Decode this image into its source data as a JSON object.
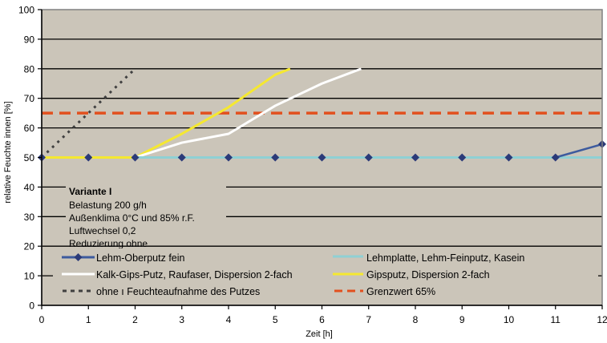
{
  "chart_data": {
    "type": "line",
    "title": "",
    "xlabel": "Zeit [h]",
    "ylabel": "relative Feuchte innen [%]",
    "xlim": [
      0,
      12
    ],
    "ylim": [
      0,
      100
    ],
    "x_ticks": [
      0,
      1,
      2,
      3,
      4,
      5,
      6,
      7,
      8,
      9,
      10,
      11,
      12
    ],
    "y_ticks": [
      0,
      10,
      20,
      30,
      40,
      50,
      60,
      70,
      80,
      90,
      100
    ],
    "grid": true,
    "legend_position": "inside-bottom",
    "series": [
      {
        "name": "Lehm-Oberputz fein",
        "color": "#3d5b9e",
        "marker_color": "#2b3a78",
        "style": "solid-marker",
        "x": [
          0,
          1,
          2,
          3,
          4,
          5,
          6,
          7,
          8,
          9,
          10,
          11,
          12
        ],
        "values": [
          50,
          50,
          50,
          50,
          50,
          50,
          50,
          50,
          50,
          50,
          50,
          50,
          54.5
        ]
      },
      {
        "name": "Lehmplatte, Lehm-Feinputz, Kasein",
        "color": "#8fd0d4",
        "style": "solid",
        "x": [
          2,
          12
        ],
        "values": [
          50,
          50
        ]
      },
      {
        "name": "Kalk-Gips-Putz, Raufaser, Dispersion 2-fach",
        "color": "#ffffff",
        "style": "solid",
        "x": [
          2,
          3,
          4,
          5,
          6,
          6.84
        ],
        "values": [
          50,
          55,
          58,
          67.5,
          75,
          80
        ]
      },
      {
        "name": "Gipsputz, Dispersion 2-fach",
        "color": "#f5e830",
        "style": "solid",
        "x": [
          0,
          2,
          3,
          4,
          5,
          5.32
        ],
        "values": [
          50,
          50,
          58,
          67,
          78,
          80
        ]
      },
      {
        "name": "ohne ı Feuchteaufnahme des Putzes",
        "color": "#404040",
        "style": "dotted",
        "x": [
          0,
          2
        ],
        "values": [
          50,
          80
        ]
      },
      {
        "name": "Grenzwert 65%",
        "color": "#e2501e",
        "style": "dashed",
        "x": [
          0,
          12
        ],
        "values": [
          65,
          65
        ]
      }
    ],
    "annotations": {
      "title": "Variante I",
      "lines": [
        "Belastung 200 g/h",
        "Außenklima 0°C und 85% r.F.",
        "Luftwechsel 0,2",
        "Reduzierung ohne"
      ]
    },
    "colors": {
      "plot_background": "#cbc5b9",
      "gridline": "#000000",
      "plot_border": "#808080"
    }
  }
}
